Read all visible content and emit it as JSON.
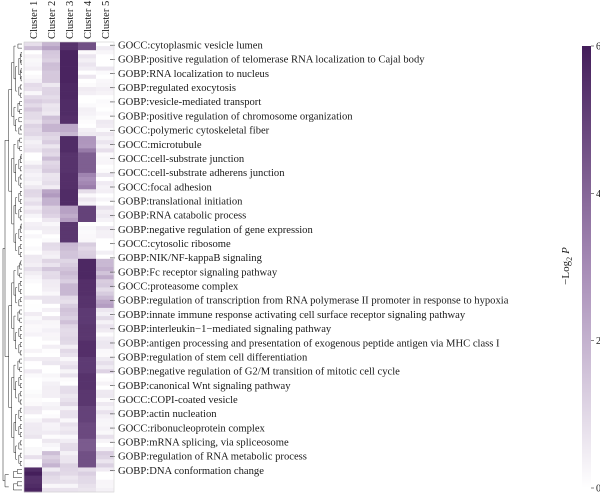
{
  "chart_data": {
    "type": "heatmap",
    "columns": [
      "Cluster 1",
      "Cluster 2",
      "Cluster 3",
      "Cluster 4",
      "Cluster 5"
    ],
    "colorbar": {
      "label": "−Log",
      "label_sub": "2",
      "label_var": "P",
      "min": 0,
      "max": 6,
      "ticks": [
        "0",
        "2",
        "4",
        "6"
      ],
      "color_low": "#ffffff",
      "color_high": "#431d5a"
    },
    "term_labels": [
      "GOCC:cytoplasmic vesicle lumen",
      "GOBP:positive regulation of telomerase RNA localization to Cajal body",
      "GOBP:RNA localization to nucleus",
      "GOBP:regulated exocytosis",
      "GOBP:vesicle-mediated transport",
      "GOBP:positive regulation of chromosome organization",
      "GOCC:polymeric cytoskeletal fiber",
      "GOCC:microtubule",
      "GOCC:cell-substrate junction",
      "GOCC:cell-substrate adherens junction",
      "GOCC:focal adhesion",
      "GOBP:translational initiation",
      "GOBP:RNA catabolic process",
      "GOBP:negative regulation of gene expression",
      "GOCC:cytosolic ribosome",
      "GOBP:NIK/NF-kappaB signaling",
      "GOBP:Fc receptor signaling pathway",
      "GOCC:proteasome complex",
      "GOBP:regulation of transcription from RNA polymerase II promoter in response to hypoxia",
      "GOBP:innate immune response activating cell surface receptor signaling pathway",
      "GOBP:interleukin−1−mediated signaling pathway",
      "GOBP:antigen processing and presentation of exogenous peptide antigen via MHC class I",
      "GOBP:regulation of stem cell differentiation",
      "GOBP:negative regulation of G2/M transition of mitotic cell cycle",
      "GOBP:canonical Wnt signaling pathway",
      "GOCC:COPI-coated vesicle",
      "GOBP:actin nucleation",
      "GOCC:ribonucleoprotein complex",
      "GOBP:mRNA splicing, via spliceosome",
      "GOBP:regulation of RNA metabolic process",
      "GOBP:DNA conformation change"
    ],
    "block_rows": [
      {
        "rows": [
          0,
          1
        ],
        "values": [
          1.3,
          2.2,
          5.4,
          4.6,
          0.2
        ]
      },
      {
        "rows": [
          2,
          9
        ],
        "values": [
          0.3,
          1.4,
          5.8,
          0.3,
          0.2
        ]
      },
      {
        "rows": [
          10,
          13
        ],
        "values": [
          0.5,
          1.0,
          5.7,
          0.3,
          0.2
        ]
      },
      {
        "rows": [
          14,
          17
        ],
        "values": [
          1.0,
          0.8,
          5.6,
          0.4,
          0.2
        ]
      },
      {
        "rows": [
          18,
          19
        ],
        "values": [
          0.8,
          1.2,
          5.5,
          0.5,
          0.2
        ]
      },
      {
        "rows": [
          20,
          22
        ],
        "values": [
          0.9,
          1.6,
          2.2,
          0.3,
          0.2
        ]
      },
      {
        "rows": [
          23,
          26
        ],
        "values": [
          0.7,
          0.9,
          5.6,
          3.0,
          0.4
        ]
      },
      {
        "rows": [
          27,
          31
        ],
        "values": [
          0.3,
          1.3,
          5.4,
          4.2,
          0.2
        ]
      },
      {
        "rows": [
          32,
          35
        ],
        "values": [
          0.5,
          0.8,
          5.5,
          3.2,
          0.2
        ]
      },
      {
        "rows": [
          36,
          39
        ],
        "values": [
          0.6,
          2.2,
          5.6,
          0.5,
          0.2
        ]
      },
      {
        "rows": [
          40,
          43
        ],
        "values": [
          0.3,
          1.0,
          2.5,
          5.0,
          0.5
        ]
      },
      {
        "rows": [
          44,
          48
        ],
        "values": [
          0.2,
          0.2,
          5.3,
          0.3,
          0.2
        ]
      },
      {
        "rows": [
          49,
          52
        ],
        "values": [
          0.3,
          0.5,
          1.6,
          1.2,
          0.2
        ]
      },
      {
        "rows": [
          53,
          57
        ],
        "values": [
          0.5,
          1.1,
          1.4,
          5.7,
          2.0
        ]
      },
      {
        "rows": [
          58,
          61
        ],
        "values": [
          0.3,
          0.4,
          1.5,
          5.5,
          1.0
        ]
      },
      {
        "rows": [
          62,
          64
        ],
        "values": [
          0.4,
          0.3,
          1.0,
          5.4,
          2.2
        ]
      },
      {
        "rows": [
          65,
          68
        ],
        "values": [
          0.4,
          0.2,
          1.4,
          5.2,
          0.6
        ]
      },
      {
        "rows": [
          69,
          72
        ],
        "values": [
          0.3,
          0.3,
          0.8,
          5.3,
          0.4
        ]
      },
      {
        "rows": [
          73,
          76
        ],
        "values": [
          0.2,
          0.2,
          0.6,
          5.5,
          0.4
        ]
      },
      {
        "rows": [
          77,
          80
        ],
        "values": [
          0.3,
          0.2,
          0.5,
          5.2,
          0.8
        ]
      },
      {
        "rows": [
          81,
          84
        ],
        "values": [
          0.2,
          0.2,
          0.4,
          5.4,
          0.3
        ]
      },
      {
        "rows": [
          85,
          88
        ],
        "values": [
          0.2,
          0.3,
          0.6,
          5.3,
          0.3
        ]
      },
      {
        "rows": [
          89,
          92
        ],
        "values": [
          0.2,
          0.3,
          0.5,
          5.0,
          0.4
        ]
      },
      {
        "rows": [
          93,
          96
        ],
        "values": [
          0.3,
          0.2,
          0.6,
          4.8,
          0.6
        ]
      },
      {
        "rows": [
          97,
          99
        ],
        "values": [
          0.2,
          0.3,
          0.5,
          4.3,
          0.3
        ]
      },
      {
        "rows": [
          100,
          103
        ],
        "values": [
          0.4,
          1.6,
          0.8,
          4.6,
          1.0
        ]
      },
      {
        "rows": [
          104,
          106
        ],
        "values": [
          5.6,
          0.8,
          0.6,
          1.0,
          0.2
        ]
      },
      {
        "rows": [
          107,
          109
        ],
        "values": [
          5.4,
          0.6,
          0.4,
          0.9,
          0.2
        ]
      }
    ],
    "total_rows": 110
  }
}
